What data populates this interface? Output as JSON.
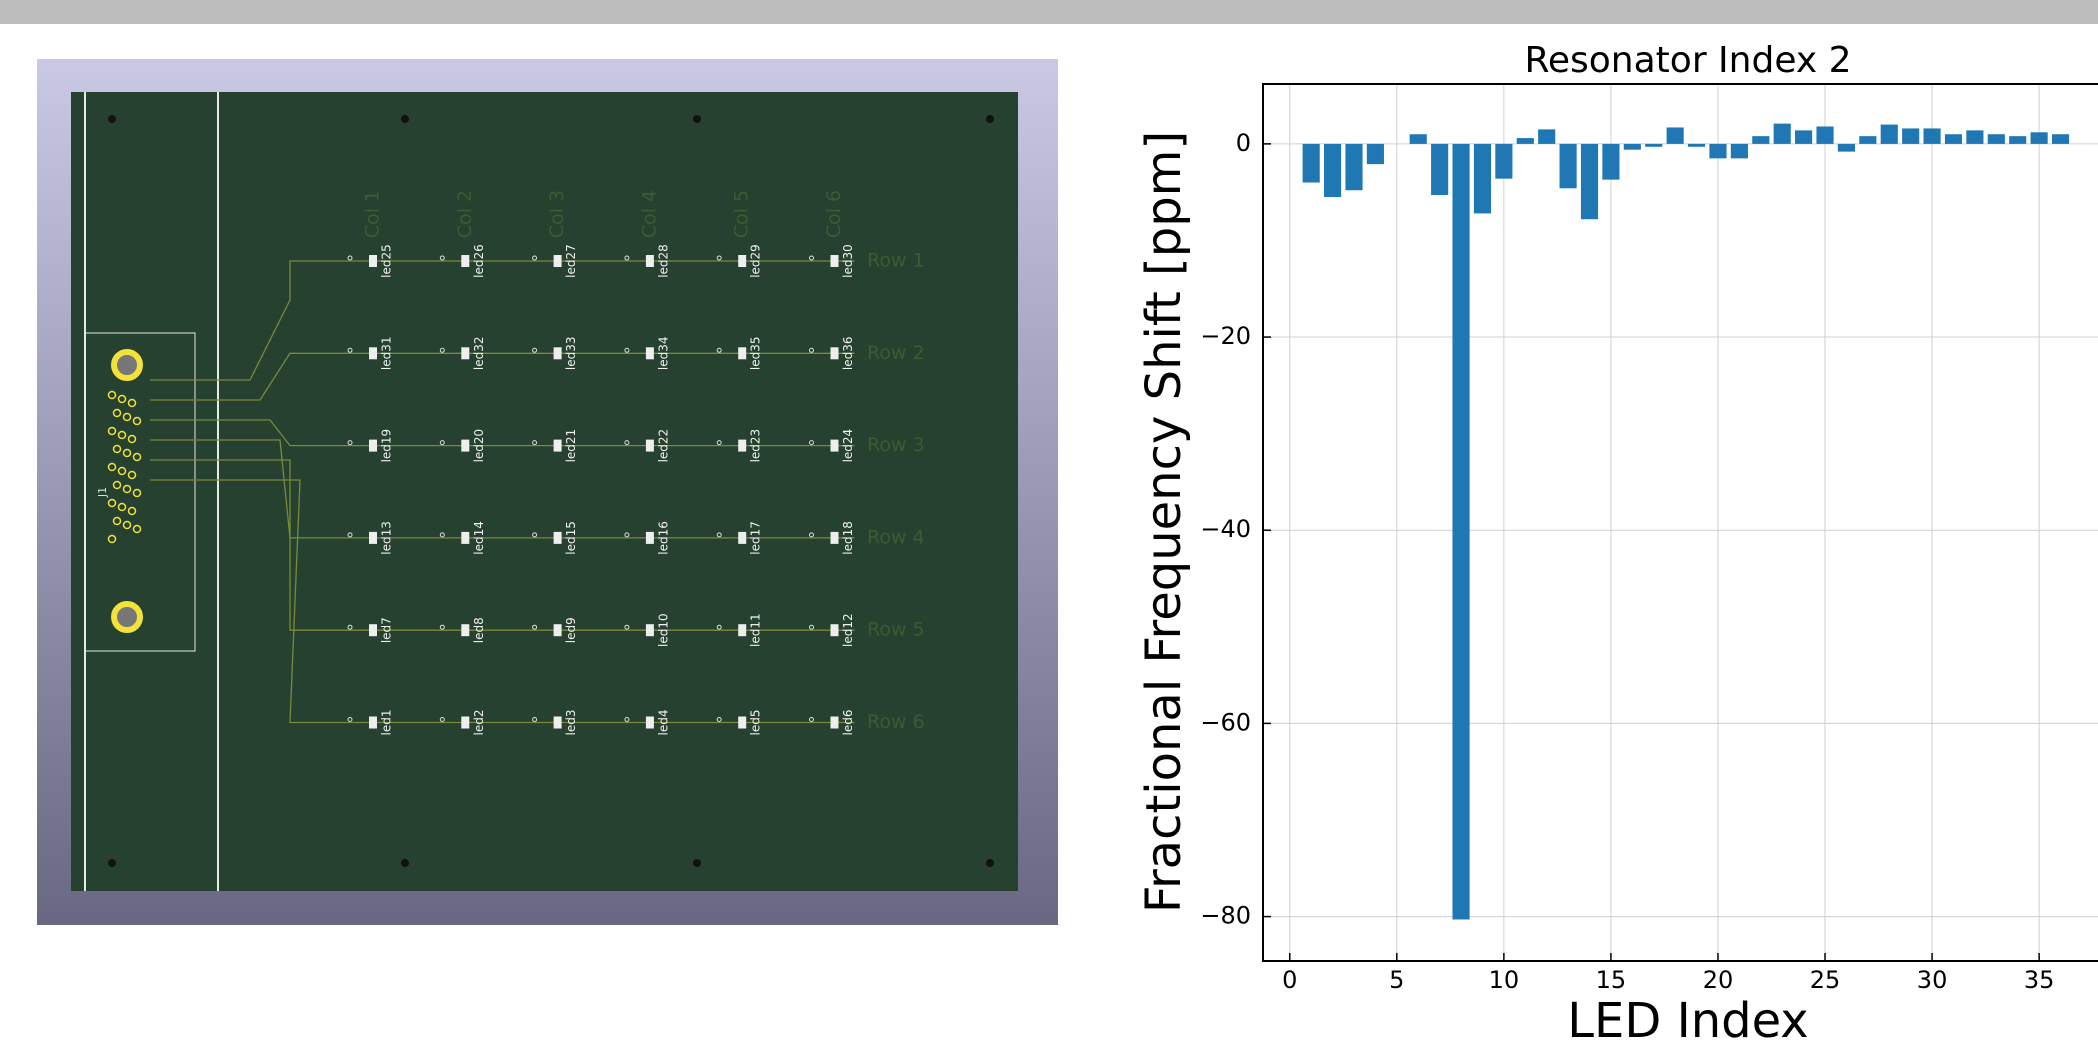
{
  "chart_data": {
    "type": "bar",
    "title": "Resonator Index 2",
    "xlabel": "LED Index",
    "ylabel": "Fractional Frequency Shift [ppm]",
    "x": [
      1,
      2,
      3,
      4,
      5,
      6,
      7,
      8,
      9,
      10,
      11,
      12,
      13,
      14,
      15,
      16,
      17,
      18,
      19,
      20,
      21,
      22,
      23,
      24,
      25,
      26,
      27,
      28,
      29,
      30,
      31,
      32,
      33,
      34,
      35,
      36
    ],
    "values": [
      -4.0,
      -5.5,
      -4.8,
      -2.1,
      0,
      1.0,
      -5.3,
      -80.3,
      -7.2,
      -3.6,
      0.6,
      1.5,
      -4.6,
      -7.8,
      -3.7,
      -0.6,
      -0.3,
      1.7,
      -0.3,
      -1.5,
      -1.5,
      0.8,
      2.1,
      1.4,
      1.8,
      -0.8,
      0.8,
      2.0,
      1.6,
      1.6,
      1.0,
      1.4,
      1.0,
      0.8,
      1.2,
      1.0
    ],
    "color": "#1f77b4",
    "grid": true,
    "xlim": [
      -1.25,
      37.75
    ],
    "xticks": [
      0,
      5,
      10,
      15,
      20,
      25,
      30,
      35
    ],
    "ylim": [
      -84.6,
      6.2
    ],
    "yticks": [
      0,
      {
        "value": -20,
        "label": "−20"
      },
      {
        "value": -40,
        "label": "−40"
      },
      {
        "value": -60,
        "label": "−60"
      },
      {
        "value": -80,
        "label": "−80"
      }
    ]
  },
  "pcb": {
    "connector": "J1",
    "columns": [
      "Col 1",
      "Col 2",
      "Col 3",
      "Col 4",
      "Col 5",
      "Col 6"
    ],
    "rows": [
      "Row 1",
      "Row 2",
      "Row 3",
      "Row 4",
      "Row 5",
      "Row 6"
    ],
    "leds": [
      [
        "led25",
        "led26",
        "led27",
        "led28",
        "led29",
        "led30"
      ],
      [
        "led31",
        "led32",
        "led33",
        "led34",
        "led35",
        "led36"
      ],
      [
        "led19",
        "led20",
        "led21",
        "led22",
        "led23",
        "led24"
      ],
      [
        "led13",
        "led14",
        "led15",
        "led16",
        "led17",
        "led18"
      ],
      [
        "led7",
        "led8",
        "led9",
        "led10",
        "led11",
        "led12"
      ],
      [
        "led1",
        "led2",
        "led3",
        "led4",
        "led5",
        "led6"
      ]
    ]
  }
}
